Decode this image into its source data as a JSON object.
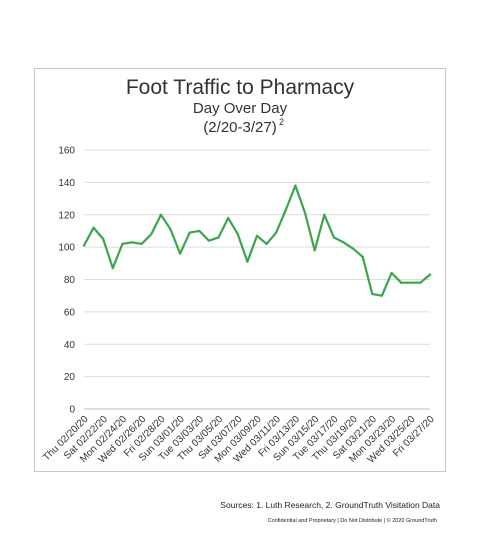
{
  "chart_data": {
    "type": "line",
    "title": "Foot Traffic to Pharmacy",
    "subtitle_lines": [
      "Day Over Day",
      "(2/20-3/27)"
    ],
    "subtitle_superscript": "2",
    "xlabel": "",
    "ylabel": "",
    "ylim": [
      0,
      160
    ],
    "yticks": [
      0,
      20,
      40,
      60,
      80,
      100,
      120,
      140,
      160
    ],
    "grid": true,
    "legend": "none",
    "x": [
      "Thu 02/20/20",
      "Fri 02/21/20",
      "Sat 02/22/20",
      "Sun 02/23/20",
      "Mon 02/24/20",
      "Tue 02/25/20",
      "Wed 02/26/20",
      "Thu 02/27/20",
      "Fri 02/28/20",
      "Sat 02/29/20",
      "Sun 03/01/20",
      "Mon 03/02/20",
      "Tue 03/03/20",
      "Wed 03/04/20",
      "Thu 03/05/20",
      "Fri 03/06/20",
      "Sat 03/07/20",
      "Sun 03/08/20",
      "Mon 03/09/20",
      "Tue 03/10/20",
      "Wed 03/11/20",
      "Thu 03/12/20",
      "Fri 03/13/20",
      "Sat 03/14/20",
      "Sun 03/15/20",
      "Mon 03/16/20",
      "Tue 03/17/20",
      "Wed 03/18/20",
      "Thu 03/19/20",
      "Fri 03/20/20",
      "Sat 03/21/20",
      "Sun 03/22/20",
      "Mon 03/23/20",
      "Tue 03/24/20",
      "Wed 03/25/20",
      "Thu 03/26/20",
      "Fri 03/27/20"
    ],
    "x_tick_labels": [
      "Thu 02/20/20",
      "Sat 02/22/20",
      "Mon 02/24/20",
      "Wed 02/26/20",
      "Fri 02/28/20",
      "Sun 03/01/20",
      "Tue 03/03/20",
      "Thu 03/05/20",
      "Sat 03/07/20",
      "Mon 03/09/20",
      "Wed 03/11/20",
      "Fri 03/13/20",
      "Sun 03/15/20",
      "Tue 03/17/20",
      "Thu 03/19/20",
      "Sat 03/21/20",
      "Mon 03/23/20",
      "Wed 03/25/20",
      "Fri 03/27/20"
    ],
    "series": [
      {
        "values": [
          101,
          112,
          105,
          87,
          102,
          103,
          102,
          108,
          120,
          111,
          96,
          109,
          110,
          104,
          106,
          118,
          108,
          91,
          107,
          102,
          109,
          123,
          138,
          121,
          98,
          120,
          106,
          103,
          99,
          94,
          71,
          70,
          84,
          78,
          78,
          78,
          83
        ],
        "color": "#3aa64a"
      }
    ]
  },
  "footer": {
    "sources": "Sources:  1. Luth Research, 2. GroundTruth Visitation Data",
    "confidential": "Confidential and Proprietary | Do Not Distribute | © 2020 GroundTruth"
  }
}
